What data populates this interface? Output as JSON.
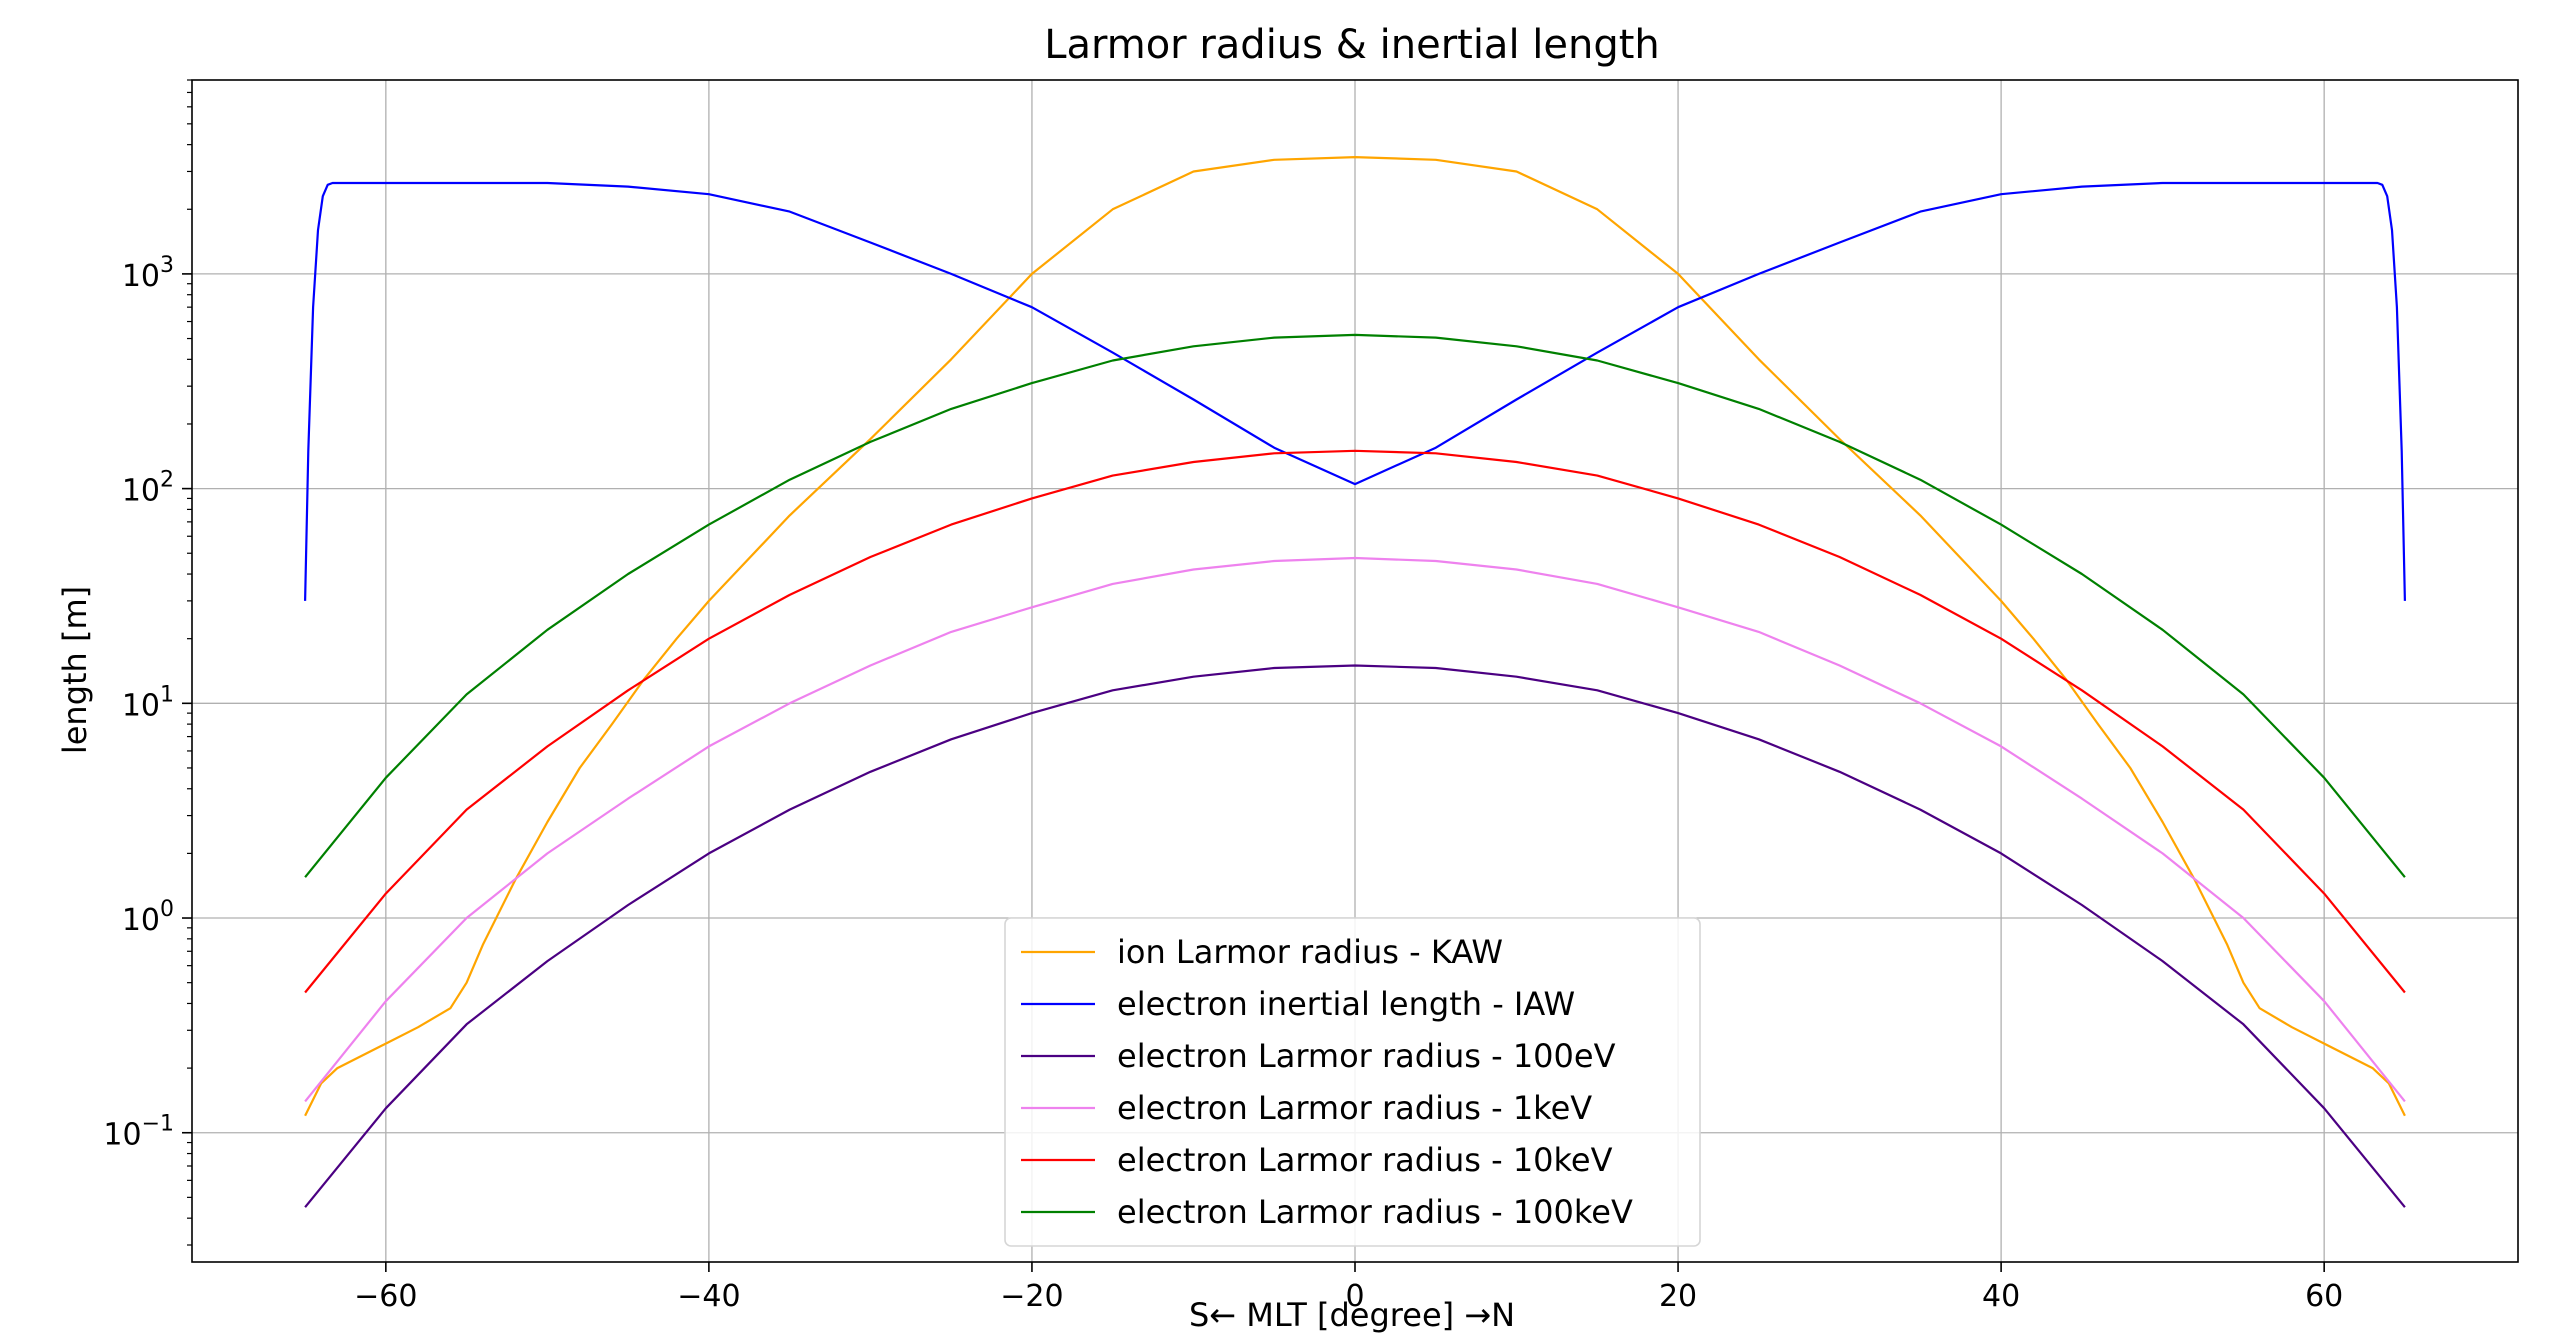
{
  "chart_data": {
    "type": "line",
    "title": "Larmor radius & inertial length",
    "xlabel": "S← MLT [degree] →N",
    "ylabel": "length [m]",
    "xlim": [
      -72,
      72
    ],
    "ylim": [
      0.025,
      8000
    ],
    "yscale": "log",
    "grid": true,
    "legend_position": "bottom-center",
    "x_ticks": [
      -60,
      -40,
      -20,
      0,
      20,
      40,
      60
    ],
    "x_tick_labels": [
      "−60",
      "−40",
      "−20",
      "0",
      "20",
      "40",
      "60"
    ],
    "y_ticks": [
      {
        "value": 0.1,
        "base": "10",
        "exp": "−1"
      },
      {
        "value": 1,
        "base": "10",
        "exp": "0"
      },
      {
        "value": 10,
        "base": "10",
        "exp": "1"
      },
      {
        "value": 100,
        "base": "10",
        "exp": "2"
      },
      {
        "value": 1000,
        "base": "10",
        "exp": "3"
      }
    ],
    "series": [
      {
        "name": "ion Larmor radius - KAW",
        "color": "#ffa500",
        "x": [
          -65,
          -64,
          -63,
          -60,
          -58,
          -56,
          -55,
          -54,
          -52,
          -50,
          -48,
          -46,
          -44,
          -42,
          -40,
          -35,
          -30,
          -25,
          -20,
          -15,
          -10,
          -5,
          0,
          5,
          10,
          15,
          20,
          25,
          30,
          35,
          40,
          42,
          44,
          46,
          48,
          50,
          52,
          54,
          55,
          56,
          58,
          60,
          63,
          64,
          65
        ],
        "y": [
          0.12,
          0.17,
          0.2,
          0.26,
          0.31,
          0.38,
          0.5,
          0.75,
          1.5,
          2.8,
          5,
          8,
          13,
          20,
          30,
          75,
          170,
          400,
          1000,
          2000,
          3000,
          3400,
          3500,
          3400,
          3000,
          2000,
          1000,
          400,
          170,
          75,
          30,
          20,
          13,
          8,
          5,
          2.8,
          1.5,
          0.75,
          0.5,
          0.38,
          0.31,
          0.26,
          0.2,
          0.17,
          0.12
        ]
      },
      {
        "name": "electron inertial length - IAW",
        "color": "#0000ff",
        "x": [
          -65,
          -64.8,
          -64.5,
          -64.2,
          -63.9,
          -63.6,
          -63.3,
          -60,
          -55,
          -50,
          -45,
          -40,
          -35,
          -30,
          -25,
          -20,
          -15,
          -10,
          -5,
          0,
          5,
          10,
          15,
          20,
          25,
          30,
          35,
          40,
          45,
          50,
          55,
          60,
          63.3,
          63.6,
          63.9,
          64.2,
          64.5,
          64.8,
          65
        ],
        "y": [
          30,
          150,
          700,
          1600,
          2300,
          2600,
          2650,
          2650,
          2650,
          2650,
          2550,
          2350,
          1950,
          1400,
          1000,
          700,
          430,
          260,
          155,
          105,
          155,
          260,
          430,
          700,
          1000,
          1400,
          1950,
          2350,
          2550,
          2650,
          2650,
          2650,
          2650,
          2600,
          2300,
          1600,
          700,
          150,
          30
        ]
      },
      {
        "name": "electron Larmor radius - 100eV",
        "color": "#4b0082",
        "x": [
          -65,
          -60,
          -55,
          -50,
          -45,
          -40,
          -35,
          -30,
          -25,
          -20,
          -15,
          -10,
          -5,
          0,
          5,
          10,
          15,
          20,
          25,
          30,
          35,
          40,
          45,
          50,
          55,
          60,
          65
        ],
        "y": [
          0.045,
          0.13,
          0.32,
          0.63,
          1.15,
          2.0,
          3.2,
          4.8,
          6.8,
          9.0,
          11.5,
          13.3,
          14.6,
          15,
          14.6,
          13.3,
          11.5,
          9.0,
          6.8,
          4.8,
          3.2,
          2.0,
          1.15,
          0.63,
          0.32,
          0.13,
          0.045
        ]
      },
      {
        "name": "electron Larmor radius - 1keV",
        "color": "#ee82ee",
        "x": [
          -65,
          -60,
          -55,
          -50,
          -45,
          -40,
          -35,
          -30,
          -25,
          -20,
          -15,
          -10,
          -5,
          0,
          5,
          10,
          15,
          20,
          25,
          30,
          35,
          40,
          45,
          50,
          55,
          60,
          65
        ],
        "y": [
          0.14,
          0.41,
          1.0,
          2.0,
          3.6,
          6.3,
          10,
          15,
          21.5,
          28,
          36,
          42,
          46,
          47.5,
          46,
          42,
          36,
          28,
          21.5,
          15,
          10,
          6.3,
          3.6,
          2.0,
          1.0,
          0.41,
          0.14
        ]
      },
      {
        "name": "electron Larmor radius - 10keV",
        "color": "#ff0000",
        "x": [
          -65,
          -60,
          -55,
          -50,
          -45,
          -40,
          -35,
          -30,
          -25,
          -20,
          -15,
          -10,
          -5,
          0,
          5,
          10,
          15,
          20,
          25,
          30,
          35,
          40,
          45,
          50,
          55,
          60,
          65
        ],
        "y": [
          0.45,
          1.3,
          3.2,
          6.3,
          11.5,
          20,
          32,
          48,
          68,
          90,
          115,
          133,
          146,
          150,
          146,
          133,
          115,
          90,
          68,
          48,
          32,
          20,
          11.5,
          6.3,
          3.2,
          1.3,
          0.45
        ]
      },
      {
        "name": "electron Larmor radius - 100keV",
        "color": "#008000",
        "x": [
          -65,
          -60,
          -55,
          -50,
          -45,
          -40,
          -35,
          -30,
          -25,
          -20,
          -15,
          -10,
          -5,
          0,
          5,
          10,
          15,
          20,
          25,
          30,
          35,
          40,
          45,
          50,
          55,
          60,
          65
        ],
        "y": [
          1.55,
          4.5,
          11,
          22,
          40,
          68,
          110,
          165,
          235,
          310,
          395,
          460,
          505,
          520,
          505,
          460,
          395,
          310,
          235,
          165,
          110,
          68,
          40,
          22,
          11,
          4.5,
          1.55
        ]
      }
    ]
  }
}
